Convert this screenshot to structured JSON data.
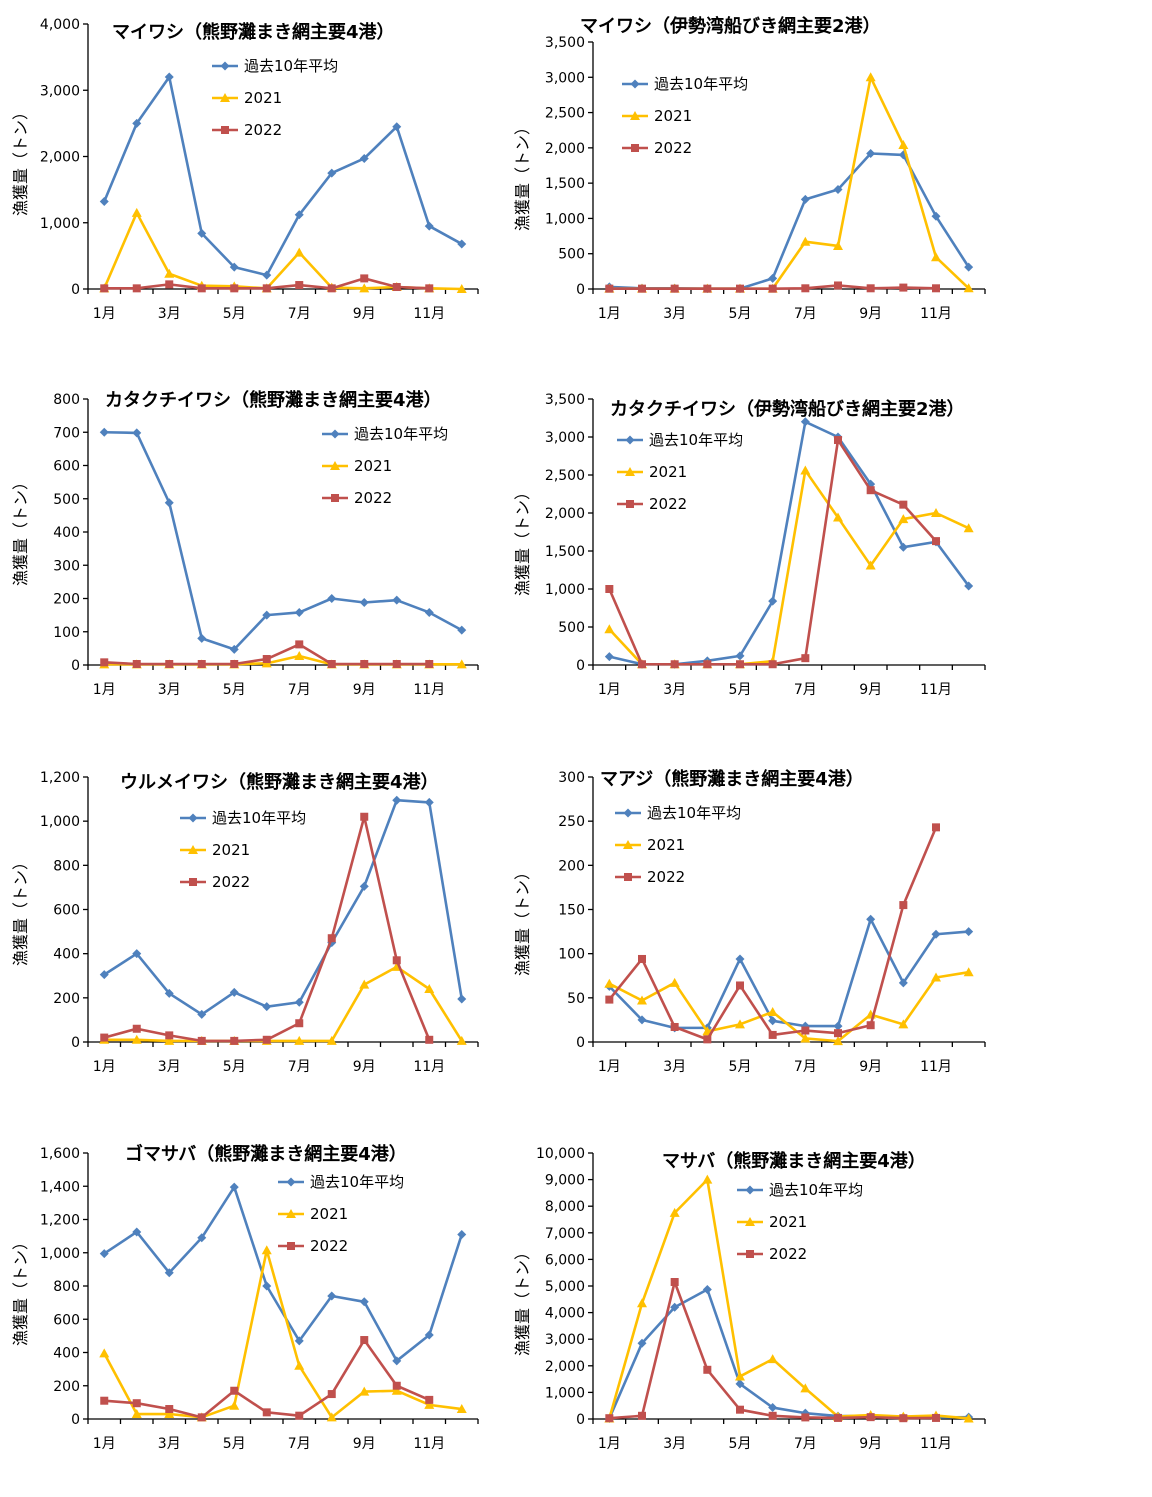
{
  "colors": {
    "avg": "#4F81BD",
    "y2021": "#FFC000",
    "y2022": "#C0504D"
  },
  "chart_data": [
    {
      "type": "line",
      "title": "マイワシ（熊野灘まき網主要4港）",
      "ylabel": "漁獲量（トン）",
      "ylim": [
        0,
        4000
      ],
      "yticks": [
        0,
        1000,
        2000,
        3000,
        4000
      ],
      "ytick_labels": [
        "0",
        "1,000",
        "2,000",
        "3,000",
        "4,000"
      ],
      "categories": [
        "1月",
        "2月",
        "3月",
        "4月",
        "5月",
        "6月",
        "7月",
        "8月",
        "9月",
        "10月",
        "11月",
        "12月"
      ],
      "xtick_labels": [
        "1月",
        "3月",
        "5月",
        "7月",
        "9月",
        "11月"
      ],
      "series": [
        {
          "name": "過去10年平均",
          "values": [
            1320,
            2500,
            3200,
            840,
            330,
            210,
            1120,
            1750,
            1970,
            2450,
            950,
            680
          ]
        },
        {
          "name": "2021",
          "values": [
            10,
            1150,
            230,
            50,
            40,
            10,
            550,
            20,
            10,
            30,
            10,
            0
          ]
        },
        {
          "name": "2022",
          "values": [
            10,
            10,
            70,
            10,
            10,
            10,
            60,
            10,
            160,
            30,
            10,
            null
          ]
        }
      ]
    },
    {
      "type": "line",
      "title": "マイワシ（伊勢湾船びき網主要2港）",
      "ylabel": "漁獲量（トン）",
      "ylim": [
        0,
        3500
      ],
      "yticks": [
        0,
        500,
        1000,
        1500,
        2000,
        2500,
        3000,
        3500
      ],
      "ytick_labels": [
        "0",
        "500",
        "1,000",
        "1,500",
        "2,000",
        "2,500",
        "3,000",
        "3,500"
      ],
      "categories": [
        "1月",
        "2月",
        "3月",
        "4月",
        "5月",
        "6月",
        "7月",
        "8月",
        "9月",
        "10月",
        "11月",
        "12月"
      ],
      "xtick_labels": [
        "1月",
        "3月",
        "5月",
        "7月",
        "9月",
        "11月"
      ],
      "series": [
        {
          "name": "過去10年平均",
          "values": [
            30,
            10,
            10,
            5,
            5,
            150,
            1270,
            1410,
            1920,
            1900,
            1030,
            310
          ]
        },
        {
          "name": "2021",
          "values": [
            5,
            5,
            5,
            5,
            5,
            5,
            670,
            610,
            3000,
            2040,
            450,
            10
          ]
        },
        {
          "name": "2022",
          "values": [
            5,
            5,
            5,
            5,
            5,
            5,
            10,
            50,
            10,
            20,
            10,
            null
          ]
        }
      ]
    },
    {
      "type": "line",
      "title": "カタクチイワシ（熊野灘まき網主要4港）",
      "ylabel": "漁獲量（トン）",
      "ylim": [
        0,
        800
      ],
      "yticks": [
        0,
        100,
        200,
        300,
        400,
        500,
        600,
        700,
        800
      ],
      "ytick_labels": [
        "0",
        "100",
        "200",
        "300",
        "400",
        "500",
        "600",
        "700",
        "800"
      ],
      "categories": [
        "1月",
        "2月",
        "3月",
        "4月",
        "5月",
        "6月",
        "7月",
        "8月",
        "9月",
        "10月",
        "11月",
        "12月"
      ],
      "xtick_labels": [
        "1月",
        "3月",
        "5月",
        "7月",
        "9月",
        "11月"
      ],
      "series": [
        {
          "name": "過去10年平均",
          "values": [
            700,
            698,
            488,
            80,
            47,
            150,
            158,
            200,
            188,
            195,
            158,
            105
          ]
        },
        {
          "name": "2021",
          "values": [
            2,
            2,
            2,
            2,
            2,
            5,
            27,
            2,
            2,
            2,
            2,
            2
          ]
        },
        {
          "name": "2022",
          "values": [
            8,
            3,
            3,
            3,
            3,
            18,
            62,
            3,
            3,
            3,
            3,
            null
          ]
        }
      ]
    },
    {
      "type": "line",
      "title": "カタクチイワシ（伊勢湾船びき網主要2港）",
      "ylabel": "漁獲量（トン）",
      "ylim": [
        0,
        3500
      ],
      "yticks": [
        0,
        500,
        1000,
        1500,
        2000,
        2500,
        3000,
        3500
      ],
      "ytick_labels": [
        "0",
        "500",
        "1,000",
        "1,500",
        "2,000",
        "2,500",
        "3,000",
        "3,500"
      ],
      "categories": [
        "1月",
        "2月",
        "3月",
        "4月",
        "5月",
        "6月",
        "7月",
        "8月",
        "9月",
        "10月",
        "11月",
        "12月"
      ],
      "xtick_labels": [
        "1月",
        "3月",
        "5月",
        "7月",
        "9月",
        "11月"
      ],
      "series": [
        {
          "name": "過去10年平均",
          "values": [
            110,
            10,
            10,
            55,
            120,
            840,
            3200,
            3000,
            2380,
            1550,
            1620,
            1040
          ]
        },
        {
          "name": "2021",
          "values": [
            470,
            10,
            10,
            10,
            10,
            50,
            2560,
            1940,
            1310,
            1920,
            2000,
            1800
          ]
        },
        {
          "name": "2022",
          "values": [
            1000,
            10,
            10,
            10,
            10,
            10,
            90,
            2960,
            2300,
            2110,
            1630,
            null
          ]
        }
      ]
    },
    {
      "type": "line",
      "title": "ウルメイワシ（熊野灘まき網主要4港）",
      "ylabel": "漁獲量（トン）",
      "ylim": [
        0,
        1200
      ],
      "yticks": [
        0,
        200,
        400,
        600,
        800,
        1000,
        1200
      ],
      "ytick_labels": [
        "0",
        "200",
        "400",
        "600",
        "800",
        "1,000",
        "1,200"
      ],
      "categories": [
        "1月",
        "2月",
        "3月",
        "4月",
        "5月",
        "6月",
        "7月",
        "8月",
        "9月",
        "10月",
        "11月",
        "12月"
      ],
      "xtick_labels": [
        "1月",
        "3月",
        "5月",
        "7月",
        "9月",
        "11月"
      ],
      "series": [
        {
          "name": "過去10年平均",
          "values": [
            305,
            400,
            220,
            125,
            225,
            160,
            180,
            450,
            705,
            1095,
            1085,
            195
          ]
        },
        {
          "name": "2021",
          "values": [
            10,
            10,
            5,
            5,
            5,
            5,
            5,
            5,
            260,
            340,
            240,
            5
          ]
        },
        {
          "name": "2022",
          "values": [
            20,
            60,
            30,
            5,
            5,
            10,
            85,
            470,
            1020,
            370,
            10,
            null
          ]
        }
      ]
    },
    {
      "type": "line",
      "title": "マアジ（熊野灘まき網主要4港）",
      "ylabel": "漁獲量（トン）",
      "ylim": [
        0,
        300
      ],
      "yticks": [
        0,
        50,
        100,
        150,
        200,
        250,
        300
      ],
      "ytick_labels": [
        "0",
        "50",
        "100",
        "150",
        "200",
        "250",
        "300"
      ],
      "categories": [
        "1月",
        "2月",
        "3月",
        "4月",
        "5月",
        "6月",
        "7月",
        "8月",
        "9月",
        "10月",
        "11月",
        "12月"
      ],
      "xtick_labels": [
        "1月",
        "3月",
        "5月",
        "7月",
        "9月",
        "11月"
      ],
      "series": [
        {
          "name": "過去10年平均",
          "values": [
            63,
            25,
            16,
            16,
            94,
            24,
            18,
            18,
            139,
            67,
            122,
            125
          ]
        },
        {
          "name": "2021",
          "values": [
            66,
            47,
            67,
            12,
            20,
            34,
            4,
            1,
            31,
            20,
            73,
            79
          ]
        },
        {
          "name": "2022",
          "values": [
            48,
            94,
            17,
            3,
            64,
            8,
            13,
            10,
            19,
            155,
            243,
            null
          ]
        }
      ]
    },
    {
      "type": "line",
      "title": "ゴマサバ（熊野灘まき網主要4港）",
      "ylabel": "漁獲量（トン）",
      "ylim": [
        0,
        1600
      ],
      "yticks": [
        0,
        200,
        400,
        600,
        800,
        1000,
        1200,
        1400,
        1600
      ],
      "ytick_labels": [
        "0",
        "200",
        "400",
        "600",
        "800",
        "1,000",
        "1,200",
        "1,400",
        "1,600"
      ],
      "categories": [
        "1月",
        "2月",
        "3月",
        "4月",
        "5月",
        "6月",
        "7月",
        "8月",
        "9月",
        "10月",
        "11月",
        "12月"
      ],
      "xtick_labels": [
        "1月",
        "3月",
        "5月",
        "7月",
        "9月",
        "11月"
      ],
      "series": [
        {
          "name": "過去10年平均",
          "values": [
            995,
            1125,
            880,
            1090,
            1395,
            800,
            470,
            740,
            705,
            350,
            505,
            1110
          ]
        },
        {
          "name": "2021",
          "values": [
            395,
            30,
            30,
            10,
            80,
            1015,
            320,
            10,
            165,
            170,
            85,
            60
          ]
        },
        {
          "name": "2022",
          "values": [
            110,
            95,
            60,
            10,
            170,
            40,
            20,
            150,
            475,
            200,
            115,
            null
          ]
        }
      ]
    },
    {
      "type": "line",
      "title": "マサバ（熊野灘まき網主要4港）",
      "ylabel": "漁獲量（トン）",
      "ylim": [
        0,
        10000
      ],
      "yticks": [
        0,
        1000,
        2000,
        3000,
        4000,
        5000,
        6000,
        7000,
        8000,
        9000,
        10000
      ],
      "ytick_labels": [
        "0",
        "1,000",
        "2,000",
        "3,000",
        "4,000",
        "5,000",
        "6,000",
        "7,000",
        "8,000",
        "9,000",
        "10,000"
      ],
      "categories": [
        "1月",
        "2月",
        "3月",
        "4月",
        "5月",
        "6月",
        "7月",
        "8月",
        "9月",
        "10月",
        "11月",
        "12月"
      ],
      "xtick_labels": [
        "1月",
        "3月",
        "5月",
        "7月",
        "9月",
        "11月"
      ],
      "series": [
        {
          "name": "過去10年平均",
          "values": [
            20,
            2850,
            4200,
            4870,
            1320,
            430,
            220,
            110,
            110,
            70,
            60,
            70
          ]
        },
        {
          "name": "2021",
          "values": [
            20,
            4350,
            7750,
            9000,
            1600,
            2250,
            1150,
            90,
            150,
            90,
            130,
            20
          ]
        },
        {
          "name": "2022",
          "values": [
            30,
            120,
            5150,
            1850,
            350,
            120,
            60,
            40,
            70,
            30,
            40,
            null
          ]
        }
      ]
    }
  ]
}
